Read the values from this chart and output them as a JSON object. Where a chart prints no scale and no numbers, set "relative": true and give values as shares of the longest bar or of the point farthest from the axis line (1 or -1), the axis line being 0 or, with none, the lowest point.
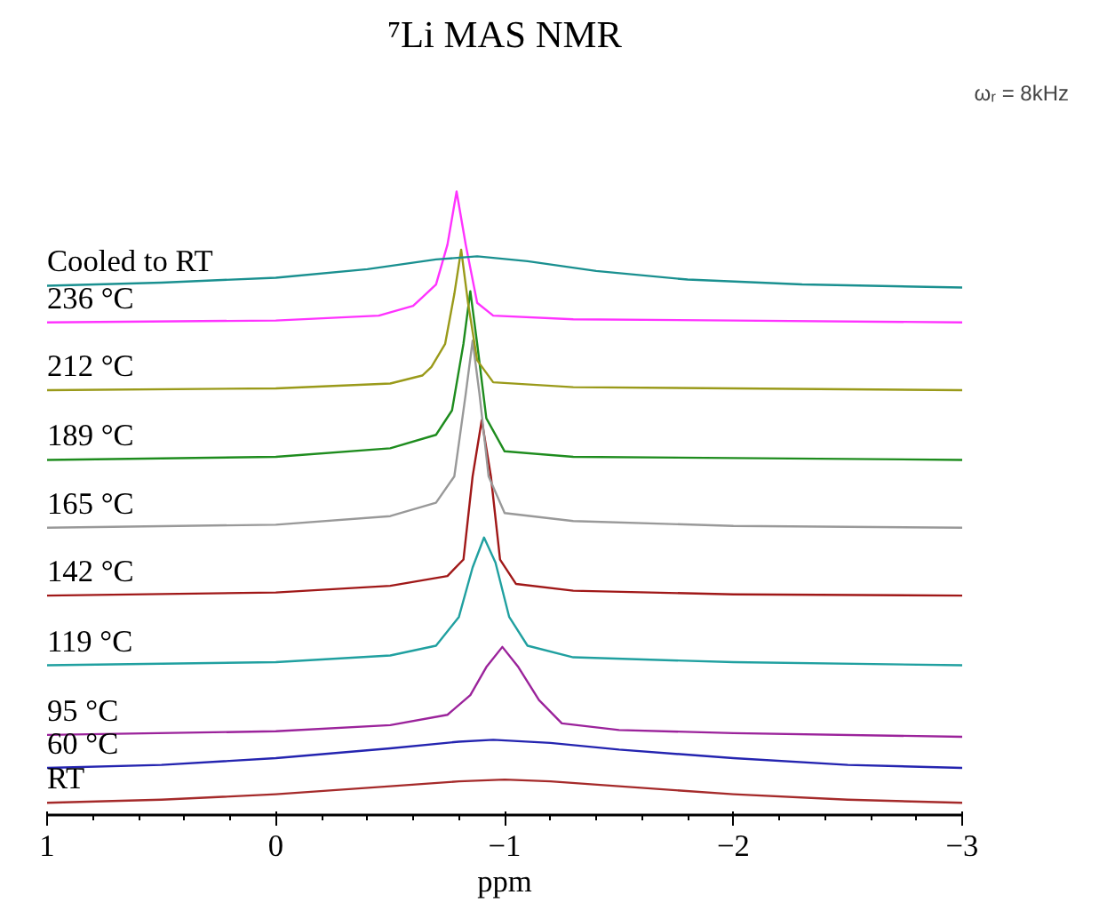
{
  "chart_data": {
    "type": "line",
    "title": "⁷Li MAS NMR",
    "xlabel": "ppm",
    "relative": true,
    "xlim": [
      1,
      -3
    ],
    "xticks": [
      1,
      0,
      -1,
      -2,
      -3
    ],
    "grid": false,
    "annotations": [
      "ωᵣ = 8kHz"
    ],
    "series": [
      {
        "name": "RT",
        "color": "#a52a2a",
        "x": [
          1,
          0.5,
          0,
          -0.5,
          -0.8,
          -1,
          -1.2,
          -1.5,
          -2,
          -2.5,
          -3
        ],
        "values": [
          0,
          0.005,
          0.014,
          0.027,
          0.035,
          0.038,
          0.035,
          0.027,
          0.014,
          0.005,
          0
        ]
      },
      {
        "name": "60 °C",
        "color": "#2424b0",
        "x": [
          1,
          0.5,
          0,
          -0.5,
          -0.8,
          -0.95,
          -1.2,
          -1.5,
          -2,
          -2.5,
          -3
        ],
        "values": [
          0.057,
          0.062,
          0.073,
          0.089,
          0.1,
          0.103,
          0.098,
          0.087,
          0.073,
          0.062,
          0.057
        ]
      },
      {
        "name": "95 °C",
        "color": "#9b239b",
        "x": [
          1,
          0,
          -0.5,
          -0.75,
          -0.85,
          -0.92,
          -0.99,
          -1.06,
          -1.15,
          -1.25,
          -1.5,
          -2,
          -3
        ],
        "values": [
          0.111,
          0.117,
          0.127,
          0.144,
          0.176,
          0.222,
          0.255,
          0.222,
          0.168,
          0.13,
          0.119,
          0.114,
          0.108
        ]
      },
      {
        "name": "119 °C",
        "color": "#20a0a0",
        "x": [
          1,
          0,
          -0.5,
          -0.7,
          -0.8,
          -0.86,
          -0.91,
          -0.96,
          -1.02,
          -1.1,
          -1.3,
          -2,
          -3
        ],
        "values": [
          0.225,
          0.23,
          0.241,
          0.257,
          0.304,
          0.385,
          0.434,
          0.393,
          0.304,
          0.257,
          0.238,
          0.23,
          0.225
        ]
      },
      {
        "name": "142 °C",
        "color": "#a01818",
        "x": [
          1,
          0,
          -0.5,
          -0.75,
          -0.82,
          -0.86,
          -0.9,
          -0.94,
          -0.98,
          -1.05,
          -1.3,
          -2,
          -3
        ],
        "values": [
          0.339,
          0.344,
          0.355,
          0.371,
          0.398,
          0.534,
          0.626,
          0.534,
          0.398,
          0.358,
          0.347,
          0.341,
          0.339
        ]
      },
      {
        "name": "165 °C",
        "color": "#999999",
        "x": [
          1,
          0,
          -0.5,
          -0.7,
          -0.78,
          -0.83,
          -0.86,
          -0.89,
          -0.93,
          -1.0,
          -1.3,
          -2,
          -3
        ],
        "values": [
          0.45,
          0.455,
          0.469,
          0.491,
          0.534,
          0.669,
          0.756,
          0.669,
          0.534,
          0.474,
          0.461,
          0.453,
          0.45
        ]
      },
      {
        "name": "189 °C",
        "color": "#1e8c1e",
        "x": [
          1,
          0,
          -0.5,
          -0.7,
          -0.77,
          -0.82,
          -0.85,
          -0.88,
          -0.92,
          -1.0,
          -1.3,
          -2,
          -3
        ],
        "values": [
          0.561,
          0.566,
          0.58,
          0.602,
          0.642,
          0.751,
          0.837,
          0.751,
          0.629,
          0.575,
          0.566,
          0.564,
          0.561
        ]
      },
      {
        "name": "212 °C",
        "color": "#9a9a1a",
        "x": [
          1,
          0,
          -0.5,
          -0.64,
          -0.68,
          -0.74,
          -0.78,
          -0.81,
          -0.84,
          -0.88,
          -0.95,
          -1.3,
          -2,
          -3
        ],
        "values": [
          0.675,
          0.678,
          0.686,
          0.699,
          0.713,
          0.751,
          0.832,
          0.905,
          0.818,
          0.724,
          0.688,
          0.68,
          0.678,
          0.675
        ]
      },
      {
        "name": "236 °C",
        "color": "#ff33ff",
        "x": [
          1,
          0,
          -0.45,
          -0.6,
          -0.64,
          -0.7,
          -0.75,
          -0.79,
          -0.83,
          -0.88,
          -0.95,
          -1.3,
          -2,
          -3
        ],
        "values": [
          0.786,
          0.789,
          0.797,
          0.813,
          0.827,
          0.848,
          0.913,
          1.0,
          0.913,
          0.818,
          0.797,
          0.791,
          0.789,
          0.786
        ]
      },
      {
        "name": "Cooled to RT",
        "color": "#1a9090",
        "x": [
          1,
          0.5,
          0,
          -0.4,
          -0.7,
          -0.88,
          -1.1,
          -1.4,
          -1.8,
          -2.3,
          -3
        ],
        "values": [
          0.846,
          0.851,
          0.859,
          0.873,
          0.889,
          0.894,
          0.886,
          0.87,
          0.856,
          0.848,
          0.843
        ]
      }
    ]
  }
}
